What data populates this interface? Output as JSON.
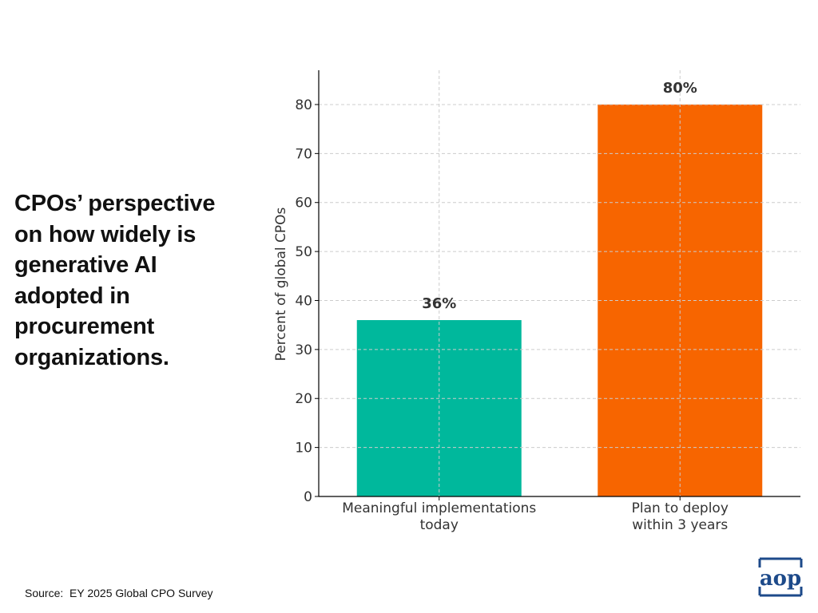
{
  "headline": {
    "lines": [
      "CPOs’ perspective",
      "on how widely is",
      "generative AI",
      "adopted in",
      "procurement",
      "organizations."
    ]
  },
  "source": "Source:  EY 2025 Global CPO Survey",
  "logo": {
    "text": "aop"
  },
  "colors": {
    "bar1": "#00b89c",
    "bar2": "#f76500",
    "text": "#111111",
    "label": "#333333",
    "grid": "#cccccc",
    "logo": "#1d4a8a"
  },
  "chart_data": {
    "type": "bar",
    "categories": [
      [
        "Meaningful implementations",
        "today"
      ],
      [
        "Plan to deploy",
        "within 3 years"
      ]
    ],
    "values": [
      36,
      80
    ],
    "data_labels": [
      "36%",
      "80%"
    ],
    "title": "",
    "xlabel": "",
    "ylabel": "Percent of global CPOs",
    "ylim": [
      0,
      87
    ],
    "yticks": [
      0,
      10,
      20,
      30,
      40,
      50,
      60,
      70,
      80
    ],
    "grid": true
  }
}
